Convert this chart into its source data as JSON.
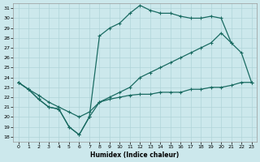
{
  "xlabel": "Humidex (Indice chaleur)",
  "bg_color": "#cce8ec",
  "grid_color": "#b0d4d8",
  "line_color": "#1a6b62",
  "xlim": [
    -0.5,
    23.5
  ],
  "ylim": [
    17.5,
    31.5
  ],
  "xticks": [
    0,
    1,
    2,
    3,
    4,
    5,
    6,
    7,
    8,
    9,
    10,
    11,
    12,
    13,
    14,
    15,
    16,
    17,
    18,
    19,
    20,
    21,
    22,
    23
  ],
  "yticks": [
    18,
    19,
    20,
    21,
    22,
    23,
    24,
    25,
    26,
    27,
    28,
    29,
    30,
    31
  ],
  "line1_x": [
    0,
    1,
    2,
    3,
    4,
    5,
    6,
    7,
    8,
    9,
    10,
    11,
    12,
    13,
    14,
    15,
    16,
    17,
    18,
    19,
    20,
    21
  ],
  "line1_y": [
    23.5,
    22.8,
    21.8,
    21.0,
    20.8,
    19.0,
    18.2,
    20.0,
    28.2,
    29.0,
    29.5,
    30.5,
    31.3,
    30.8,
    30.5,
    30.5,
    30.2,
    30.0,
    30.0,
    30.2,
    30.0,
    27.5
  ],
  "line2_x": [
    0,
    1,
    2,
    3,
    4,
    5,
    6,
    7,
    8,
    9,
    10,
    11,
    12,
    13,
    14,
    15,
    16,
    17,
    18,
    19,
    20,
    21,
    22,
    23
  ],
  "line2_y": [
    23.5,
    22.8,
    22.2,
    21.5,
    21.0,
    20.5,
    20.0,
    20.5,
    21.5,
    22.0,
    22.5,
    23.0,
    24.0,
    24.5,
    25.0,
    25.5,
    26.0,
    26.5,
    27.0,
    27.5,
    28.5,
    27.5,
    26.5,
    23.5
  ],
  "line3_x": [
    0,
    1,
    2,
    3,
    4,
    5,
    6,
    7,
    8,
    9,
    10,
    11,
    12,
    13,
    14,
    15,
    16,
    17,
    18,
    19,
    20,
    21,
    22,
    23
  ],
  "line3_y": [
    23.5,
    22.8,
    21.8,
    21.0,
    20.8,
    19.0,
    18.2,
    20.0,
    21.5,
    21.8,
    22.0,
    22.2,
    22.3,
    22.3,
    22.5,
    22.5,
    22.5,
    22.8,
    22.8,
    23.0,
    23.0,
    23.2,
    23.5,
    23.5
  ]
}
